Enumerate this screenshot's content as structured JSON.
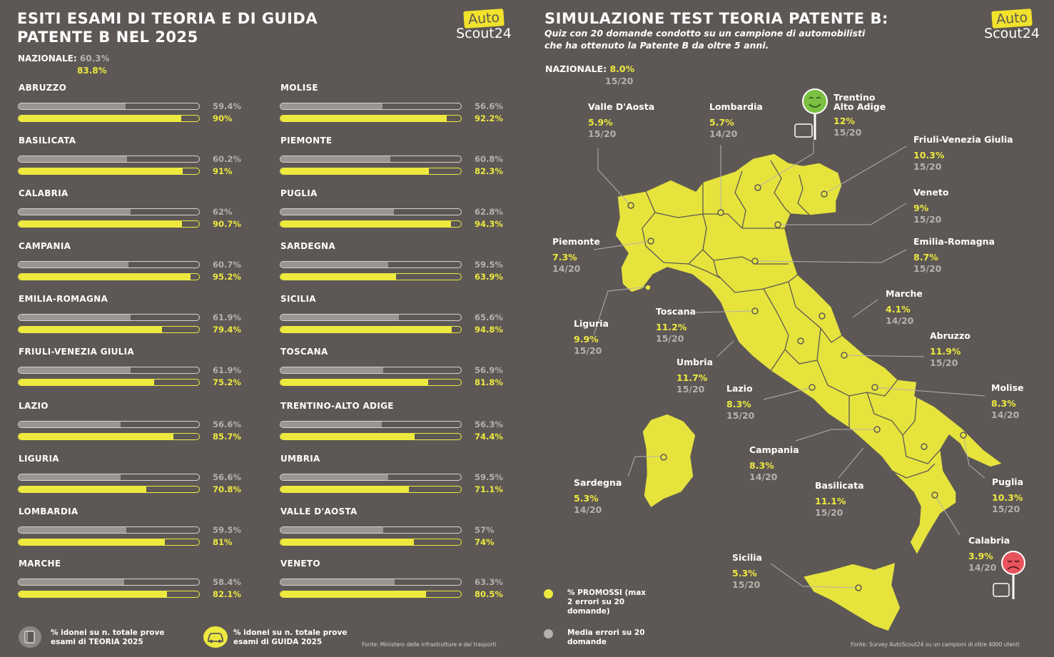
{
  "left": {
    "title_line1": "ESITI ESAMI DI TEORIA E DI GUIDA",
    "title_line2": "PATENTE B NEL 2025",
    "national_label": "NAZIONALE:",
    "national_theory": "60.3%",
    "national_driving": "83.8%",
    "legend_theory": "% idonei su n. totale prove esami di TEORIA 2025",
    "legend_driving": "% idonei su n. totale prove esami di GUIDA 2025",
    "source": "Fonte: Ministero delle infrastrutture e dei trasporti"
  },
  "right": {
    "title": "SIMULAZIONE TEST TEORIA PATENTE B:",
    "subtitle_line1": "Quiz con 20 domande condotto su un campione di automobilisti",
    "subtitle_line2": "che ha ottenuto la Patente B da oltre 5 anni.",
    "national_label": "NAZIONALE:",
    "national_pct": "8.0%",
    "national_score": "15/20",
    "legend_yellow": "% PROMOSSI (max 2 errori su 20 domande)",
    "legend_gray": "Media errori su 20 domande",
    "source": "Fonte: Survey AutoScout24 su un campioni di oltre 4000 utenti"
  },
  "logo": {
    "top": "Auto",
    "bottom": "Scout24"
  },
  "colors": {
    "background": "#5d5855",
    "accent": "#eee93f",
    "gray": "#9b9591",
    "happy": "#7bc043",
    "sad": "#e8545c"
  },
  "icons": {
    "theory": "book-icon",
    "driving": "car-icon",
    "happy": "happy-face-sign-icon",
    "sad": "sad-face-sign-icon"
  },
  "chart_data": [
    {
      "type": "bar",
      "series": [
        {
          "name": "% idonei su n. totale prove esami di TEORIA 2025",
          "color": "#9b9591",
          "values": [
            59.4,
            60.2,
            62,
            60.7,
            61.9,
            61.9,
            56.6,
            56.6,
            59.5,
            58.4,
            56.6,
            60.8,
            62.8,
            59.5,
            65.6,
            56.9,
            56.3,
            59.5,
            57,
            63.3
          ]
        },
        {
          "name": "% idonei su n. totale prove esami di GUIDA 2025",
          "color": "#eee93f",
          "values": [
            90,
            91,
            90.7,
            95.2,
            79.4,
            75.2,
            85.7,
            70.8,
            81,
            82.1,
            92.2,
            82.3,
            94.3,
            63.9,
            94.8,
            81.8,
            74.4,
            71.1,
            74,
            80.5
          ]
        }
      ],
      "categories": [
        "ABRUZZO",
        "BASILICATA",
        "CALABRIA",
        "CAMPANIA",
        "EMILIA-ROMAGNA",
        "FRIULI-VENEZIA GIULIA",
        "LAZIO",
        "LIGURIA",
        "LOMBARDIA",
        "MARCHE",
        "MOLISE",
        "PIEMONTE",
        "PUGLIA",
        "SARDEGNA",
        "SICILIA",
        "TOSCANA",
        "TRENTINO-ALTO ADIGE",
        "UMBRIA",
        "VALLE D'AOSTA",
        "VENETO"
      ],
      "labels_theory": [
        "59.4%",
        "60.2%",
        "62%",
        "60.7%",
        "61.9%",
        "61.9%",
        "56.6%",
        "56.6%",
        "59.5%",
        "58.4%",
        "56.6%",
        "60.8%",
        "62.8%",
        "59.5%",
        "65.6%",
        "56.9%",
        "56.3%",
        "59.5%",
        "57%",
        "63.3%"
      ],
      "labels_driving": [
        "90%",
        "91%",
        "90.7%",
        "95.2%",
        "79.4%",
        "75.2%",
        "85.7%",
        "70.8%",
        "81%",
        "82.1%",
        "92.2%",
        "82.3%",
        "94.3%",
        "63.9%",
        "94.8%",
        "81.8%",
        "74.4%",
        "71.1%",
        "74%",
        "80.5%"
      ],
      "ylim": [
        0,
        100
      ]
    },
    {
      "type": "map",
      "regions": [
        {
          "name": "Valle D'Aosta",
          "pct": "5.9%",
          "score": "15/20"
        },
        {
          "name": "Lombardia",
          "pct": "5.7%",
          "score": "14/20"
        },
        {
          "name": "Trentino Alto Adige",
          "pct": "12%",
          "score": "15/20"
        },
        {
          "name": "Friuli-Venezia Giulia",
          "pct": "10.3%",
          "score": "15/20"
        },
        {
          "name": "Veneto",
          "pct": "9%",
          "score": "15/20"
        },
        {
          "name": "Piemonte",
          "pct": "7.3%",
          "score": "14/20"
        },
        {
          "name": "Emilia-Romagna",
          "pct": "8.7%",
          "score": "15/20"
        },
        {
          "name": "Marche",
          "pct": "4.1%",
          "score": "14/20"
        },
        {
          "name": "Liguria",
          "pct": "9.9%",
          "score": "15/20"
        },
        {
          "name": "Toscana",
          "pct": "11.2%",
          "score": "15/20"
        },
        {
          "name": "Abruzzo",
          "pct": "11.9%",
          "score": "15/20"
        },
        {
          "name": "Umbria",
          "pct": "11.7%",
          "score": "15/20"
        },
        {
          "name": "Lazio",
          "pct": "8.3%",
          "score": "15/20"
        },
        {
          "name": "Molise",
          "pct": "8.3%",
          "score": "14/20"
        },
        {
          "name": "Campania",
          "pct": "8.3%",
          "score": "14/20"
        },
        {
          "name": "Sardegna",
          "pct": "5.3%",
          "score": "14/20"
        },
        {
          "name": "Basilicata",
          "pct": "11.1%",
          "score": "15/20"
        },
        {
          "name": "Puglia",
          "pct": "10.3%",
          "score": "15/20"
        },
        {
          "name": "Calabria",
          "pct": "3.9%",
          "score": "14/20"
        },
        {
          "name": "Sicilia",
          "pct": "5.3%",
          "score": "15/20"
        }
      ]
    }
  ]
}
